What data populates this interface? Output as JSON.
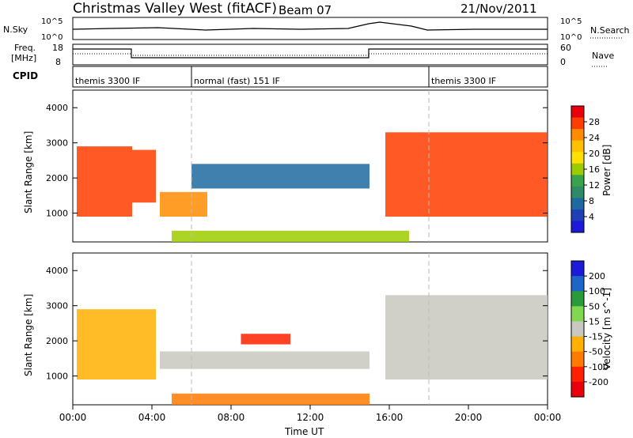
{
  "header": {
    "title": "Christmas Valley West (fitACF)",
    "beam": "Beam 07",
    "date": "21/Nov/2011"
  },
  "top_panels": {
    "nsky_label": "N.Sky",
    "nsearch_label": "N.Search",
    "nsky_ticks": [
      "10^5",
      "10^0"
    ],
    "nsearch_ticks": [
      "10^5",
      "10^0"
    ],
    "freq_label": "Freq.",
    "freq_unit": "[MHz]",
    "freq_ticks": [
      "18",
      "8"
    ],
    "nave_label": "Nave",
    "nave_ticks": [
      "60",
      "0"
    ],
    "cpid_label": "CPID",
    "cpid_segments": [
      {
        "label": "themis 3300 IF",
        "start_hour": 0,
        "end_hour": 6
      },
      {
        "label": "normal (fast) 151 IF",
        "start_hour": 6,
        "end_hour": 18
      },
      {
        "label": "themis 3300 IF",
        "start_hour": 18,
        "end_hour": 24
      }
    ]
  },
  "x_axis": {
    "label": "Time UT",
    "ticks": [
      "00:00",
      "04:00",
      "08:00",
      "12:00",
      "16:00",
      "20:00",
      "00:00"
    ]
  },
  "power_panel": {
    "ylabel": "Slant Range [km]",
    "yticks": [
      "4000",
      "3000",
      "2000",
      "1000"
    ],
    "colorbar_label": "Power [dB]",
    "colorbar_ticks": [
      "28",
      "24",
      "20",
      "16",
      "12",
      "8",
      "4"
    ],
    "colors": [
      "#e8000b",
      "#ff3d00",
      "#ff8c00",
      "#ffc000",
      "#ffe000",
      "#9ccc00",
      "#3aa24a",
      "#2f8a66",
      "#1e6aa0",
      "#1f3fb5",
      "#1a1ad8"
    ]
  },
  "velocity_panel": {
    "ylabel": "Slant Range [km]",
    "yticks": [
      "4000",
      "3000",
      "2000",
      "1000"
    ],
    "colorbar_label": "Velocity [m s^-1]",
    "colorbar_ticks": [
      "200",
      "100",
      "50",
      "15",
      "-15",
      "-50",
      "-100",
      "-200"
    ],
    "colors": [
      "#1a1ad8",
      "#1f64c8",
      "#2a9a3a",
      "#7fd84f",
      "#c8c8c0",
      "#ffb000",
      "#ff7a00",
      "#ff2000",
      "#e8000b"
    ]
  },
  "chart_data": {
    "type": "heatmap",
    "x_range_hours": [
      0,
      24
    ],
    "y_range_km": [
      180,
      4500
    ],
    "power_regions_dB": [
      {
        "t_start": 0.2,
        "t_end": 3.0,
        "r_low": 900,
        "r_high": 2900,
        "power": 28
      },
      {
        "t_start": 3.0,
        "t_end": 4.2,
        "r_low": 1300,
        "r_high": 2800,
        "power": 26
      },
      {
        "t_start": 4.4,
        "t_end": 6.8,
        "r_low": 900,
        "r_high": 1600,
        "power": 24
      },
      {
        "t_start": 6.0,
        "t_end": 15.0,
        "r_low": 1700,
        "r_high": 2400,
        "power": 6
      },
      {
        "t_start": 5.0,
        "t_end": 17.0,
        "r_low": 180,
        "r_high": 500,
        "power": 14
      },
      {
        "t_start": 15.8,
        "t_end": 24.0,
        "r_low": 900,
        "r_high": 3300,
        "power": 28
      }
    ],
    "velocity_regions_ms": [
      {
        "t_start": 0.2,
        "t_end": 4.2,
        "r_low": 900,
        "r_high": 2900,
        "velocity": -20
      },
      {
        "t_start": 4.4,
        "t_end": 15.0,
        "r_low": 1200,
        "r_high": 1700,
        "velocity": 0
      },
      {
        "t_start": 8.5,
        "t_end": 11.0,
        "r_low": 1900,
        "r_high": 2200,
        "velocity": -150
      },
      {
        "t_start": 5.0,
        "t_end": 15.0,
        "r_low": 180,
        "r_high": 500,
        "velocity": -60
      },
      {
        "t_start": 15.8,
        "t_end": 24.0,
        "r_low": 900,
        "r_high": 3300,
        "velocity": 0
      }
    ]
  }
}
